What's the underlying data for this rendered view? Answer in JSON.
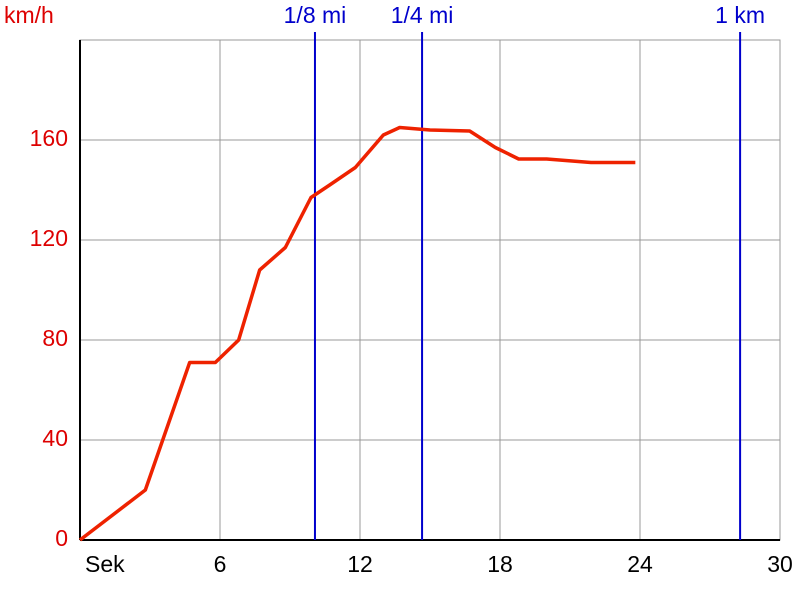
{
  "chart_data": {
    "type": "line",
    "y_label": "km/h",
    "x": [
      0,
      2.8,
      4.7,
      5.8,
      6.8,
      7.7,
      8.8,
      9.9,
      10.7,
      11.8,
      13,
      13.7,
      15,
      16.7,
      17.8,
      18.8,
      20,
      21.9,
      23.8
    ],
    "series": [
      {
        "color": "#ee2200",
        "values": [
          0,
          20,
          71,
          71,
          80,
          108,
          117,
          137,
          142,
          149,
          162,
          165,
          164,
          163.6,
          157,
          152.4,
          152.4,
          151,
          151
        ]
      }
    ],
    "xlim": [
      0,
      30
    ],
    "xticks": [
      {
        "value": 0,
        "label": "Sek"
      },
      6,
      12,
      18,
      24,
      30
    ],
    "ylim": [
      0,
      200
    ],
    "yticks": [
      0,
      40,
      80,
      120,
      160
    ],
    "grid": true,
    "reference_lines": [
      {
        "label": "1/8 mi",
        "x": 10.07
      },
      {
        "label": "1/4 mi",
        "x": 14.66
      },
      {
        "label": "1 km",
        "x": 28.29
      }
    ],
    "reference_color": "#0000cc",
    "y_tick_color": "#dd0000"
  }
}
